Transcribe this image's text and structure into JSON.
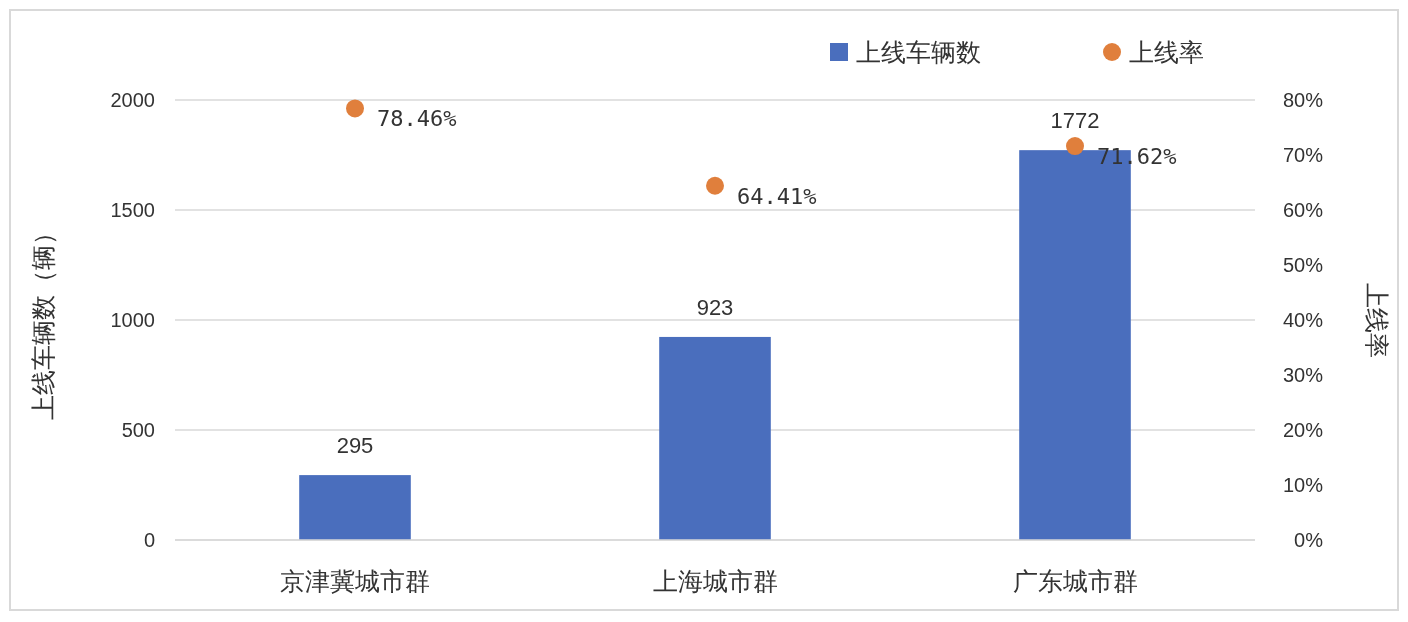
{
  "chart_data": {
    "type": "bar",
    "categories": [
      "京津冀城市群",
      "上海城市群",
      "广东城市群"
    ],
    "series": [
      {
        "name": "上线车辆数",
        "color": "#4a6ebd",
        "values": [
          295,
          923,
          1772
        ]
      },
      {
        "name": "上线率",
        "type": "scatter",
        "axis": "y2",
        "color": "#e07f3c",
        "values": [
          78.46,
          64.41,
          71.62
        ],
        "value_labels": [
          "78.46%",
          "64.41%",
          "71.62%"
        ]
      }
    ],
    "data_labels": true,
    "ylabel": "上线车辆数（辆）",
    "y2label": "上线率",
    "ylim": [
      0,
      2000
    ],
    "yticks": [
      0,
      500,
      1000,
      1500,
      2000
    ],
    "y2lim": [
      0,
      80
    ],
    "y2ticks": [
      {
        "value": 0,
        "label": "0%"
      },
      {
        "value": 10,
        "label": "10%"
      },
      {
        "value": 20,
        "label": "20%"
      },
      {
        "value": 30,
        "label": "30%"
      },
      {
        "value": 40,
        "label": "40%"
      },
      {
        "value": 50,
        "label": "50%"
      },
      {
        "value": 60,
        "label": "60%"
      },
      {
        "value": 70,
        "label": "70%"
      },
      {
        "value": 80,
        "label": "80%"
      }
    ],
    "grid": "y",
    "legend": "top right",
    "marker": "circle"
  }
}
